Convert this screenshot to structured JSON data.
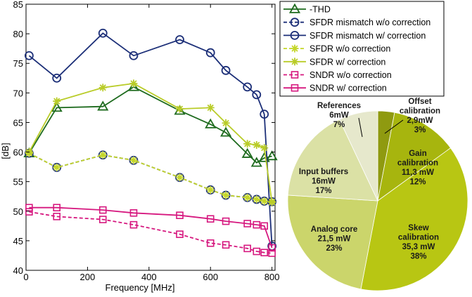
{
  "chart_data": [
    {
      "type": "line",
      "xlabel": "Frequency [MHz]",
      "ylabel": "[dB]",
      "xlim": [
        0,
        810
      ],
      "ylim": [
        40,
        85
      ],
      "xticks": [
        0,
        200,
        400,
        600,
        800
      ],
      "yticks": [
        40,
        45,
        50,
        55,
        60,
        65,
        70,
        75,
        80,
        85
      ],
      "grid": false,
      "legend_position": "top-right",
      "series": [
        {
          "name": "-THD",
          "color": "#1e6b1e",
          "dash": "solid",
          "marker": "triangle",
          "x": [
            10,
            100,
            250,
            350,
            500,
            600,
            650,
            720,
            750,
            775,
            800
          ],
          "y": [
            59.8,
            67.5,
            67.7,
            71.0,
            67.0,
            64.7,
            63.3,
            59.7,
            58.2,
            59.0,
            59.3
          ]
        },
        {
          "name": "SFDR mismatch w/o correction",
          "color": "#1c2f78",
          "dash": "dashed",
          "marker": "circle",
          "x": [
            10,
            100,
            250,
            350,
            500,
            600,
            650,
            720,
            750,
            775,
            800
          ],
          "y": [
            59.8,
            57.4,
            59.5,
            58.6,
            55.7,
            53.6,
            52.7,
            52.3,
            52.0,
            51.7,
            51.6
          ]
        },
        {
          "name": "SFDR mismatch w/ correction",
          "color": "#1c2f78",
          "dash": "solid",
          "marker": "circle",
          "x": [
            10,
            100,
            250,
            350,
            500,
            600,
            650,
            720,
            750,
            775,
            800
          ],
          "y": [
            76.3,
            72.5,
            80.1,
            76.3,
            79.0,
            76.8,
            73.8,
            71.0,
            69.7,
            66.4,
            44.1
          ]
        },
        {
          "name": "SFDR w/o correction",
          "color": "#c4d628",
          "dash": "dashed",
          "marker": "star",
          "x": [
            10,
            100,
            250,
            350,
            500,
            600,
            650,
            720,
            750,
            775,
            800
          ],
          "y": [
            59.8,
            57.4,
            59.5,
            58.6,
            55.7,
            53.6,
            52.7,
            52.3,
            52.0,
            51.7,
            51.6
          ]
        },
        {
          "name": "SFDR w/ correction",
          "color": "#b9cc28",
          "dash": "solid",
          "marker": "star",
          "x": [
            10,
            100,
            250,
            350,
            500,
            600,
            650,
            720,
            750,
            775,
            800
          ],
          "y": [
            60.0,
            68.6,
            70.9,
            71.6,
            67.3,
            67.5,
            64.9,
            61.4,
            61.2,
            60.7,
            51.5
          ]
        },
        {
          "name": "SNDR w/o correction",
          "color": "#d6187f",
          "dash": "dashed",
          "marker": "square",
          "x": [
            10,
            100,
            250,
            350,
            500,
            600,
            650,
            720,
            750,
            775,
            800
          ],
          "y": [
            49.9,
            49.1,
            48.6,
            47.7,
            46.1,
            44.6,
            44.3,
            43.7,
            43.2,
            43.0,
            42.9
          ]
        },
        {
          "name": "SNDR w/ correction",
          "color": "#d6187f",
          "dash": "solid",
          "marker": "square",
          "x": [
            10,
            100,
            250,
            350,
            500,
            600,
            650,
            720,
            750,
            775,
            800
          ],
          "y": [
            50.6,
            50.6,
            50.2,
            49.7,
            49.3,
            48.7,
            48.3,
            47.9,
            47.7,
            47.5,
            43.8
          ]
        }
      ]
    },
    {
      "type": "pie",
      "slices": [
        {
          "lines": [
            "Offset",
            "calibration",
            "2,9mW",
            "3%"
          ],
          "value": 3,
          "color": "#8f9a10",
          "label_outside": true
        },
        {
          "lines": [
            "Gain",
            "calibration",
            "11,3 mW",
            "12%"
          ],
          "value": 12,
          "color": "#a7b50e",
          "label_outside": false
        },
        {
          "lines": [
            "Skew",
            "calibration",
            "35,3 mW",
            "38%"
          ],
          "value": 38,
          "color": "#b8c613",
          "label_outside": false
        },
        {
          "lines": [
            "Analog core",
            "21,5 mW",
            "23%"
          ],
          "value": 23,
          "color": "#cbd56b",
          "label_outside": false
        },
        {
          "lines": [
            "Input buffers",
            "16mW",
            "17%"
          ],
          "value": 17,
          "color": "#dbe1a5",
          "label_outside": false
        },
        {
          "lines": [
            "References",
            "6mW",
            "7%"
          ],
          "value": 7,
          "color": "#e6e8cc",
          "label_outside": true
        }
      ]
    }
  ]
}
